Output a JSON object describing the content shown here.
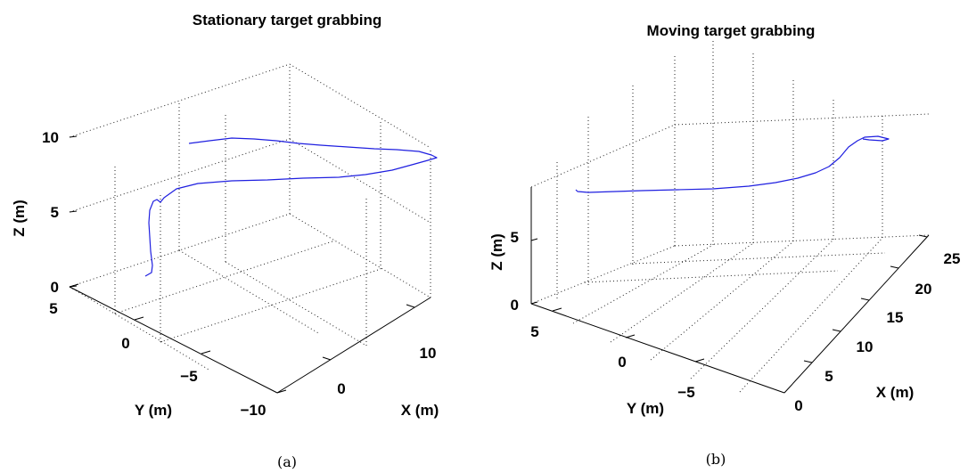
{
  "chart_data": [
    {
      "type": "line3d",
      "title": "Stationary target grabbing",
      "caption": "(a)",
      "xlabel": "X (m)",
      "ylabel": "Y (m)",
      "zlabel": "Z (m)",
      "xticks": [
        "0",
        "10"
      ],
      "yticks": [
        "5",
        "0",
        "−5",
        "−10"
      ],
      "zticks": [
        "0",
        "5",
        "10"
      ],
      "xlim": [
        -5,
        15
      ],
      "ylim": [
        -10,
        5
      ],
      "zlim": [
        0,
        10
      ],
      "grid": true,
      "line_color": "#1f1fe0",
      "series": [
        {
          "x": [
            -1.0,
            -1.0,
            -1.1,
            -1.2,
            -1.0,
            -0.5,
            0.5,
            2.0,
            4.0,
            6.5,
            9.0,
            11.5,
            13.5,
            14.8,
            15.0,
            13.5,
            12.0,
            10.5,
            9.0,
            7.5,
            6.0,
            4.5,
            3.5
          ],
          "y": [
            -2.0,
            -1.8,
            -1.7,
            -1.5,
            -1.2,
            -0.6,
            -0.4,
            -0.9,
            -1.6,
            -2.5,
            -3.5,
            -4.5,
            -5.4,
            -6.0,
            -6.2,
            -4.6,
            -3.0,
            -1.4,
            0.3,
            1.7,
            3.0,
            4.2,
            5.0
          ],
          "z": [
            0.6,
            1.5,
            3.0,
            4.5,
            5.5,
            6.3,
            6.5,
            6.6,
            6.7,
            6.8,
            7.0,
            7.2,
            7.6,
            8.0,
            8.3,
            8.7,
            8.8,
            9.0,
            9.1,
            9.2,
            9.3,
            9.3,
            9.2
          ]
        }
      ]
    },
    {
      "type": "line3d",
      "title": "Moving target grabbing",
      "caption": "(b)",
      "xlabel": "X (m)",
      "ylabel": "Y (m)",
      "zlabel": "Z (m)",
      "xticks": [
        "0",
        "5",
        "10",
        "15",
        "20",
        "25"
      ],
      "yticks": [
        "5",
        "0",
        "−5"
      ],
      "zticks": [
        "0",
        "5"
      ],
      "xlim": [
        0,
        25
      ],
      "ylim": [
        -10,
        6
      ],
      "zlim": [
        0,
        9
      ],
      "grid": true,
      "line_color": "#1f1fe0",
      "series": [
        {
          "x": [
            0.5,
            1.0,
            2.5,
            4.0,
            6.0,
            8.0,
            10.0,
            12.0,
            14.0,
            16.0,
            17.5,
            19.0,
            20.3,
            21.2,
            22.0,
            23.0,
            24.5,
            25.0,
            24.0,
            23.2
          ],
          "y": [
            2.0,
            1.8,
            0.8,
            -0.3,
            -1.4,
            -2.6,
            -3.7,
            -4.8,
            -5.8,
            -6.8,
            -7.6,
            -8.4,
            -9.0,
            -9.3,
            -9.5,
            -9.6,
            -9.3,
            -9.0,
            -8.8,
            -8.9
          ],
          "z": [
            6.5,
            6.4,
            6.2,
            6.1,
            5.9,
            5.8,
            5.7,
            5.6,
            5.6,
            5.6,
            5.7,
            5.8,
            6.0,
            6.3,
            6.8,
            7.4,
            7.8,
            7.9,
            8.0,
            7.9
          ]
        }
      ]
    }
  ]
}
